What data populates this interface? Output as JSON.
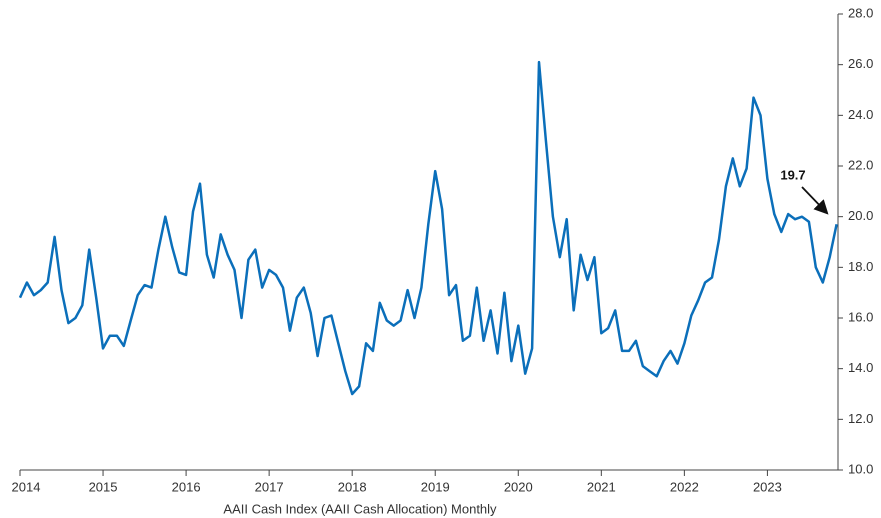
{
  "chart_data": {
    "type": "line",
    "xlabel": "AAII Cash Index (AAII Cash Allocation) Monthly",
    "annotation": "19.7",
    "x": [
      2014,
      2014.083,
      2014.167,
      2014.25,
      2014.333,
      2014.417,
      2014.5,
      2014.583,
      2014.667,
      2014.75,
      2014.833,
      2014.917,
      2015,
      2015.083,
      2015.167,
      2015.25,
      2015.333,
      2015.417,
      2015.5,
      2015.583,
      2015.667,
      2015.75,
      2015.833,
      2015.917,
      2016,
      2016.083,
      2016.167,
      2016.25,
      2016.333,
      2016.417,
      2016.5,
      2016.583,
      2016.667,
      2016.75,
      2016.833,
      2016.917,
      2017,
      2017.083,
      2017.167,
      2017.25,
      2017.333,
      2017.417,
      2017.5,
      2017.583,
      2017.667,
      2017.75,
      2017.833,
      2017.917,
      2018,
      2018.083,
      2018.167,
      2018.25,
      2018.333,
      2018.417,
      2018.5,
      2018.583,
      2018.667,
      2018.75,
      2018.833,
      2018.917,
      2019,
      2019.083,
      2019.167,
      2019.25,
      2019.333,
      2019.417,
      2019.5,
      2019.583,
      2019.667,
      2019.75,
      2019.833,
      2019.917,
      2020,
      2020.083,
      2020.167,
      2020.25,
      2020.333,
      2020.417,
      2020.5,
      2020.583,
      2020.667,
      2020.75,
      2020.833,
      2020.917,
      2021,
      2021.083,
      2021.167,
      2021.25,
      2021.333,
      2021.417,
      2021.5,
      2021.583,
      2021.667,
      2021.75,
      2021.833,
      2021.917,
      2022,
      2022.083,
      2022.167,
      2022.25,
      2022.333,
      2022.417,
      2022.5,
      2022.583,
      2022.667,
      2022.75,
      2022.833,
      2022.917,
      2023,
      2023.083,
      2023.167,
      2023.25,
      2023.333,
      2023.417,
      2023.5,
      2023.583,
      2023.667,
      2023.75,
      2023.833
    ],
    "series": [
      {
        "name": "AAII Cash Index",
        "color": "#0b6fba",
        "values": [
          16.8,
          17.4,
          16.9,
          17.1,
          17.4,
          19.2,
          17.1,
          15.8,
          16.0,
          16.5,
          18.7,
          16.8,
          14.8,
          15.3,
          15.3,
          14.9,
          15.9,
          16.9,
          17.3,
          17.2,
          18.7,
          20.0,
          18.8,
          17.8,
          17.7,
          20.2,
          21.3,
          18.5,
          17.6,
          19.3,
          18.5,
          17.9,
          16.0,
          18.3,
          18.7,
          17.2,
          17.9,
          17.7,
          17.2,
          15.5,
          16.8,
          17.2,
          16.2,
          14.5,
          16.0,
          16.1,
          15.0,
          13.9,
          13.0,
          13.3,
          15.0,
          14.7,
          16.6,
          15.9,
          15.7,
          15.9,
          17.1,
          16.0,
          17.2,
          19.7,
          21.8,
          20.3,
          16.9,
          17.3,
          15.1,
          15.3,
          17.2,
          15.1,
          16.3,
          14.6,
          17.0,
          14.3,
          15.7,
          13.8,
          14.8,
          26.1,
          23.0,
          20.0,
          18.4,
          19.9,
          16.3,
          18.5,
          17.5,
          18.4,
          15.4,
          15.6,
          16.3,
          14.7,
          14.7,
          15.1,
          14.1,
          13.9,
          13.7,
          14.3,
          14.7,
          14.2,
          15.0,
          16.1,
          16.7,
          17.4,
          17.6,
          19.1,
          21.2,
          22.3,
          21.2,
          21.9,
          24.7,
          24.0,
          21.5,
          20.1,
          19.4,
          20.1,
          19.9,
          20.0,
          19.8,
          18.0,
          17.4,
          18.4,
          19.7
        ]
      }
    ],
    "xlim": [
      2014,
      2023.85
    ],
    "xticks": [
      2014,
      2015,
      2016,
      2017,
      2018,
      2019,
      2020,
      2021,
      2022,
      2023
    ],
    "ylim": [
      10,
      28
    ],
    "yticks": [
      {
        "value": 10,
        "label": "10.0"
      },
      {
        "value": 12,
        "label": "12.0"
      },
      {
        "value": 14,
        "label": "14.0"
      },
      {
        "value": 16,
        "label": "16.0"
      },
      {
        "value": 18,
        "label": "18.0"
      },
      {
        "value": 20,
        "label": "20.0"
      },
      {
        "value": 22,
        "label": "22.0"
      },
      {
        "value": 24,
        "label": "24.0"
      },
      {
        "value": 26,
        "label": "26.0"
      },
      {
        "value": 28,
        "label": "28.0"
      }
    ],
    "grid": false
  }
}
